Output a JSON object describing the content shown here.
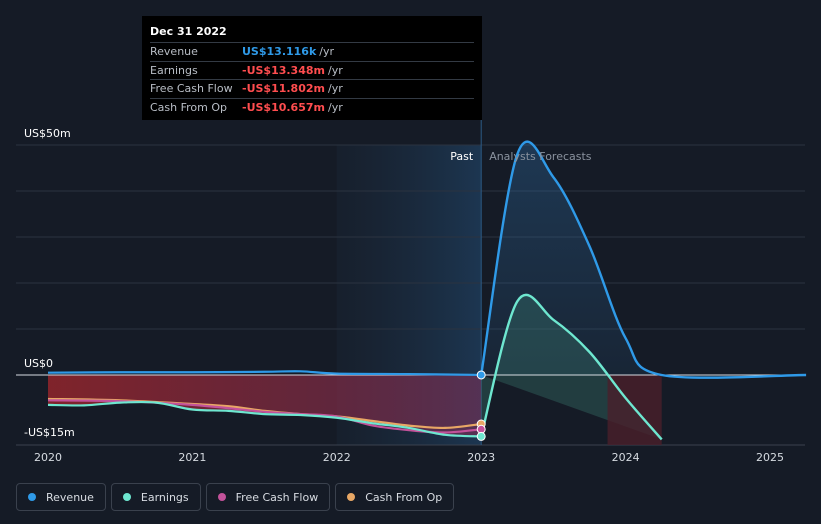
{
  "tooltip": {
    "date": "Dec 31 2022",
    "rows": [
      {
        "label": "Revenue",
        "value": "US$13.116k",
        "unit": "/yr",
        "kind": "rev"
      },
      {
        "label": "Earnings",
        "value": "-US$13.348m",
        "unit": "/yr",
        "kind": "neg"
      },
      {
        "label": "Free Cash Flow",
        "value": "-US$11.802m",
        "unit": "/yr",
        "kind": "neg"
      },
      {
        "label": "Cash From Op",
        "value": "-US$10.657m",
        "unit": "/yr",
        "kind": "neg"
      }
    ]
  },
  "legend": [
    {
      "label": "Revenue",
      "color": "#2f9ae8"
    },
    {
      "label": "Earnings",
      "color": "#6ee7d0"
    },
    {
      "label": "Free Cash Flow",
      "color": "#c2529a"
    },
    {
      "label": "Cash From Op",
      "color": "#e8a765"
    }
  ],
  "colors": {
    "revenue": "#2f9ae8",
    "earnings": "#6ee7d0",
    "fcf": "#c2529a",
    "cfo": "#e8a765"
  },
  "chart_data": {
    "type": "line",
    "title": "",
    "xlabel": "",
    "ylabel": "",
    "ylim": [
      -15,
      50
    ],
    "xlim": [
      2020,
      2025.25
    ],
    "y_tick_labels": [
      {
        "value": 50,
        "label": "US$50m"
      },
      {
        "value": 0,
        "label": "US$0"
      },
      {
        "value": -15,
        "label": "-US$15m"
      }
    ],
    "x_ticks": [
      2020,
      2021,
      2022,
      2023,
      2024,
      2025
    ],
    "x_tick_labels": [
      "2020",
      "2021",
      "2022",
      "2023",
      "2024",
      "2025"
    ],
    "divider_x": 2023,
    "past_label": "Past",
    "forecast_label": "Analysts Forecasts",
    "series": [
      {
        "name": "Revenue",
        "x": [
          2020,
          2020.5,
          2021,
          2021.5,
          2021.75,
          2022,
          2022.5,
          2023
        ],
        "values": [
          0.5,
          0.6,
          0.6,
          0.7,
          0.8,
          0.3,
          0.2,
          0.013
        ],
        "forecast": {
          "x": [
            2023,
            2023.25,
            2023.5,
            2023.75,
            2024,
            2024.25,
            2025.25
          ],
          "values": [
            0.013,
            48,
            43,
            28,
            8,
            0,
            0
          ]
        }
      },
      {
        "name": "Earnings",
        "x": [
          2020,
          2020.25,
          2020.5,
          2020.75,
          2021,
          2021.25,
          2021.5,
          2021.75,
          2022,
          2022.25,
          2022.5,
          2022.75,
          2023
        ],
        "values": [
          -6.5,
          -6.6,
          -6,
          -6,
          -7.5,
          -7.8,
          -8.5,
          -8.7,
          -9.3,
          -10.5,
          -11.5,
          -13,
          -13.348
        ],
        "forecast": {
          "x": [
            2023,
            2023.25,
            2023.5,
            2023.75,
            2024,
            2024.25
          ],
          "values": [
            -13.348,
            16,
            12,
            5,
            -5,
            -14
          ]
        }
      },
      {
        "name": "Free Cash Flow",
        "x": [
          2020,
          2020.5,
          2021,
          2021.5,
          2021.75,
          2022,
          2022.25,
          2022.5,
          2022.75,
          2023
        ],
        "values": [
          -5.5,
          -5.7,
          -6.5,
          -8,
          -8.5,
          -9,
          -11,
          -12,
          -12.5,
          -11.802
        ]
      },
      {
        "name": "Cash From Op",
        "x": [
          2020,
          2020.5,
          2021,
          2021.25,
          2021.5,
          2021.75,
          2022,
          2022.25,
          2022.5,
          2022.75,
          2023
        ],
        "values": [
          -5.2,
          -5.5,
          -6.3,
          -6.8,
          -7.8,
          -8.5,
          -9,
          -10,
          -11,
          -11.5,
          -10.657
        ]
      }
    ]
  }
}
